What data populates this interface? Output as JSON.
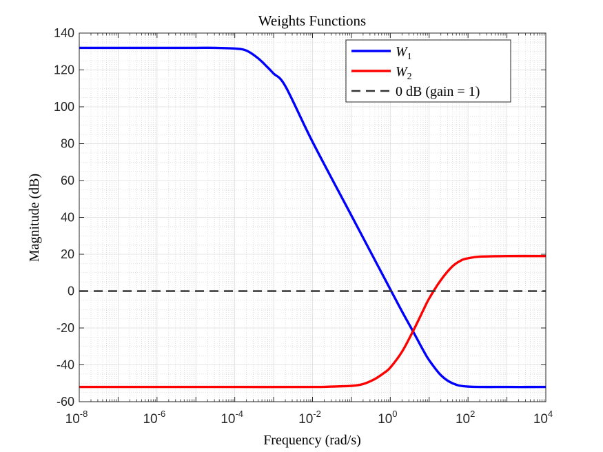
{
  "chart_data": {
    "type": "line",
    "title": "Weights Functions",
    "xlabel": "Frequency (rad/s)",
    "ylabel": "Magnitude (dB)",
    "x_scale": "log",
    "xlim": [
      1e-08,
      10000
    ],
    "ylim": [
      -60,
      140
    ],
    "x_ticks": [
      {
        "base": "10",
        "exp": "-8"
      },
      {
        "base": "10",
        "exp": "-6"
      },
      {
        "base": "10",
        "exp": "-4"
      },
      {
        "base": "10",
        "exp": "-2"
      },
      {
        "base": "10",
        "exp": "0"
      },
      {
        "base": "10",
        "exp": "2"
      },
      {
        "base": "10",
        "exp": "4"
      }
    ],
    "y_ticks": [
      "-60",
      "-40",
      "-20",
      "0",
      "20",
      "40",
      "60",
      "80",
      "100",
      "120",
      "140"
    ],
    "grid": true,
    "minor_grid": true,
    "legend_position": "top-right",
    "series": [
      {
        "name": "W",
        "subscript": "1",
        "color": "#0000ff",
        "style": "solid",
        "x": [
          1e-08,
          1e-07,
          1e-06,
          1e-05,
          3e-05,
          0.0001,
          0.0002,
          0.0004,
          0.0007,
          0.001,
          0.002,
          0.01,
          0.1,
          1,
          2,
          4,
          7,
          10,
          20,
          40,
          100,
          1000,
          10000
        ],
        "y": [
          132,
          132,
          132,
          132,
          132,
          131.6,
          130.5,
          126.3,
          121.4,
          118.0,
          111.2,
          81.0,
          41.0,
          1.0,
          -11.0,
          -22.5,
          -32.0,
          -37.5,
          -45.6,
          -50.0,
          -51.8,
          -52,
          -52
        ]
      },
      {
        "name": "W",
        "subscript": "2",
        "color": "#ff0000",
        "style": "solid",
        "x": [
          1e-08,
          1e-06,
          0.0001,
          0.01,
          0.03,
          0.1,
          0.2,
          0.4,
          0.7,
          1,
          2,
          4,
          7,
          10,
          20,
          40,
          70,
          100,
          200,
          1000,
          10000
        ],
        "y": [
          -52,
          -52,
          -52,
          -52,
          -51.8,
          -51.4,
          -50.4,
          -47.7,
          -44.3,
          -41.5,
          -32.9,
          -21.0,
          -10.5,
          -4.0,
          6.0,
          13.5,
          16.9,
          17.8,
          18.7,
          19,
          19
        ]
      },
      {
        "name": "0 dB (gain = 1)",
        "color": "#333333",
        "style": "dashed",
        "x": [
          1e-08,
          10000
        ],
        "y": [
          0,
          0
        ]
      }
    ]
  }
}
